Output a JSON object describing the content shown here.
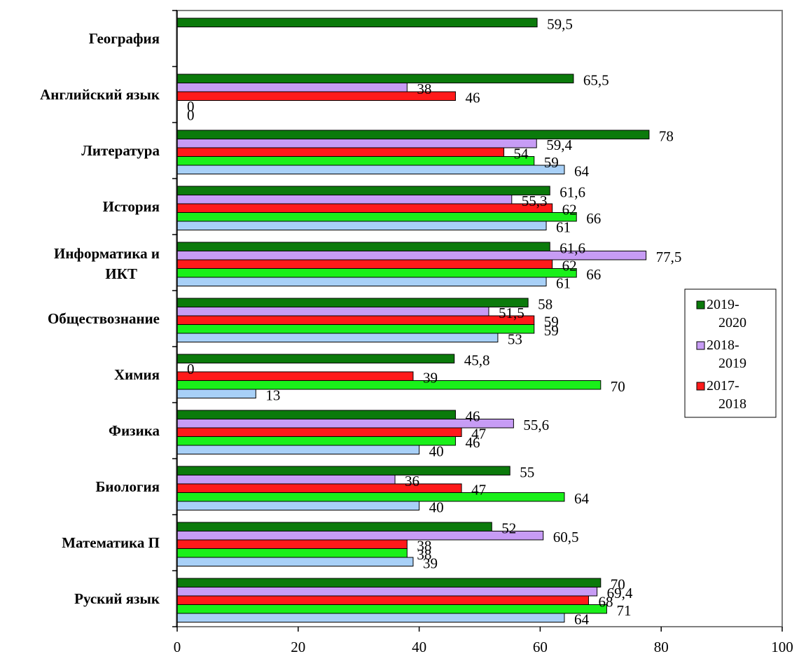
{
  "chart_data": {
    "type": "bar",
    "orientation": "horizontal",
    "categories": [
      "География",
      "Английский язык",
      "Литература",
      "История",
      "Информатика и ИКТ",
      "Обществознание",
      "Химия",
      "Физика",
      "Биология",
      "Математика П",
      "Руский язык"
    ],
    "series": [
      {
        "name": "2019-2020",
        "color": "#0B7A0B",
        "values": [
          59.5,
          65.5,
          78,
          61.6,
          61.6,
          58,
          45.8,
          46,
          55,
          52,
          70
        ],
        "labels": [
          "59,5",
          "65,5",
          "78",
          "61,6",
          "61,6",
          "58",
          "45,8",
          "46",
          "55",
          "52",
          "70"
        ]
      },
      {
        "name": "2018-2019",
        "color": "#C79CF5",
        "values": [
          null,
          38,
          59.4,
          55.3,
          77.5,
          51.5,
          0,
          55.6,
          36,
          60.5,
          69.4
        ],
        "labels": [
          null,
          "38",
          "59,4",
          "55,3",
          "77,5",
          "51,5",
          "0",
          "55,6",
          "36",
          "60,5",
          "69,4"
        ]
      },
      {
        "name": "2017-2018",
        "color": "#FF1A1A",
        "values": [
          null,
          46,
          54,
          62,
          62,
          59,
          39,
          47,
          47,
          38,
          68
        ],
        "labels": [
          null,
          "46",
          "54",
          "62",
          "62",
          "59",
          "39",
          "47",
          "47",
          "38",
          "68"
        ]
      },
      {
        "name": "",
        "color": "#1AF01A",
        "values": [
          null,
          0,
          59,
          66,
          66,
          59,
          70,
          46,
          64,
          38,
          71
        ],
        "labels": [
          null,
          "0",
          "59",
          "66",
          "66",
          "59",
          "70",
          "46",
          "64",
          "38",
          "71"
        ]
      },
      {
        "name": "",
        "color": "#A8D0F7",
        "values": [
          null,
          0,
          64,
          61,
          61,
          53,
          13,
          40,
          40,
          39,
          64
        ],
        "labels": [
          null,
          "0",
          "64",
          "61",
          "61",
          "53",
          "13",
          "40",
          "40",
          "39",
          "64"
        ]
      }
    ],
    "xlim": [
      0,
      100
    ],
    "xticks": [
      0,
      20,
      40,
      60,
      80,
      100
    ],
    "legend": {
      "placement": "right",
      "entries": [
        "2019-2020",
        "2018-2019",
        "2017-2018"
      ]
    },
    "grid": false
  }
}
